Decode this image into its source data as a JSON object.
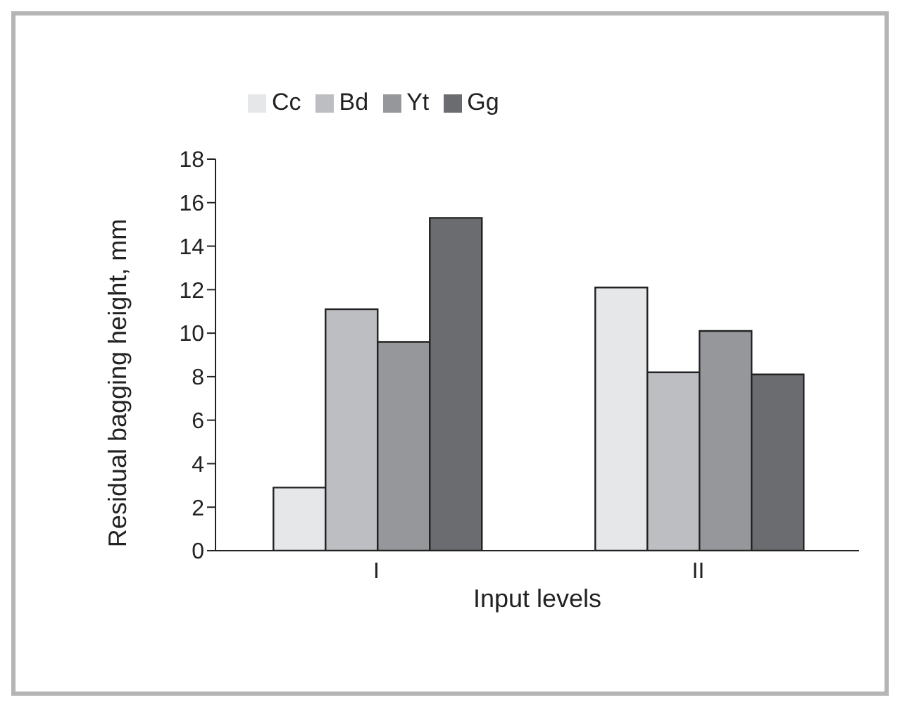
{
  "chart_data": {
    "type": "bar",
    "xlabel": "Input levels",
    "ylabel": "Residual bagging height, mm",
    "categories": [
      "I",
      "II"
    ],
    "series": [
      {
        "name": "Cc",
        "color": "#e6e7e9",
        "values": [
          2.9,
          12.1
        ]
      },
      {
        "name": "Bd",
        "color": "#bdbec2",
        "values": [
          11.1,
          8.2
        ]
      },
      {
        "name": "Yt",
        "color": "#96979b",
        "values": [
          9.6,
          10.1
        ]
      },
      {
        "name": "Gg",
        "color": "#6b6c70",
        "values": [
          15.3,
          8.1
        ]
      }
    ],
    "ylim": [
      0,
      18
    ],
    "yticks": [
      0,
      2,
      4,
      6,
      8,
      10,
      12,
      14,
      16,
      18
    ],
    "grid": false,
    "legend": "top"
  }
}
